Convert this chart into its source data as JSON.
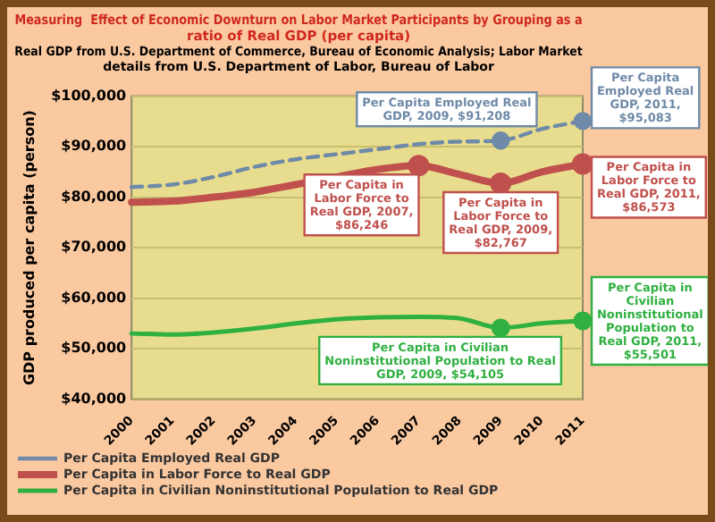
{
  "chart_data": {
    "type": "line",
    "title": "Measuring  Effect of Economic Downturn on Labor Market Participants by Grouping as a ratio of Real GDP (per capita)",
    "subtitle": "Real GDP from U.S. Department of Commerce, Bureau of Economic Analysis; Labor Market details from U.S. Department of Labor, Bureau of Labor",
    "ylabel": "GDP produced per capita (person)",
    "categories": [
      "2000",
      "2001",
      "2002",
      "2003",
      "2004",
      "2005",
      "2006",
      "2007",
      "2008",
      "2009",
      "2010",
      "2011"
    ],
    "series": [
      {
        "name": "Per Capita Employed Real GDP",
        "color": "#6f8aa8",
        "line_style": "dashed",
        "values": [
          82000,
          82500,
          84000,
          86000,
          87500,
          88500,
          89500,
          90500,
          91000,
          91208,
          93500,
          95083
        ]
      },
      {
        "name": "Per Capita in Labor Force to Real GDP",
        "color": "#c0504d",
        "values": [
          79000,
          79200,
          80000,
          81000,
          82500,
          84000,
          85500,
          86246,
          84500,
          82767,
          85000,
          86573
        ]
      },
      {
        "name": "Per Capita in Civilian Noninstitutional Population to Real GDP",
        "color": "#2fb040",
        "values": [
          53000,
          52800,
          53200,
          54000,
          55000,
          55800,
          56200,
          56300,
          56000,
          54105,
          55000,
          55501
        ]
      }
    ],
    "ylim": [
      40000,
      100000
    ],
    "yticks": [
      {
        "value": 40000,
        "label": "$40,000"
      },
      {
        "value": 50000,
        "label": "$50,000"
      },
      {
        "value": 60000,
        "label": "$60,000"
      },
      {
        "value": 70000,
        "label": "$70,000"
      },
      {
        "value": 80000,
        "label": "$80,000"
      },
      {
        "value": 90000,
        "label": "$90,000"
      },
      {
        "value": 100000,
        "label": "$100,000"
      }
    ],
    "grid": "y",
    "legend": "bottom",
    "line_style": "solid",
    "annotations": [
      {
        "text": "Per Capita Employed Real GDP, 2009, $91,208",
        "x": "2009",
        "y": 91208
      },
      {
        "text": "Per Capita Employed Real GDP, 2011, $95,083",
        "x": "2011",
        "y": 95083
      },
      {
        "text": "Per Capita in Labor Force to Real GDP, 2007, $86,246",
        "x": "2007",
        "y": 86246
      },
      {
        "text": "Per Capita in Labor Force to Real GDP, 2009, $82,767",
        "x": "2009",
        "y": 82767
      },
      {
        "text": "Per Capita in Labor Force to Real GDP, 2011, $86,573",
        "x": "2011",
        "y": 86573
      },
      {
        "text": "Per Capita in Civilian Noninstitutional Population to Real GDP, 2009, $54,105",
        "x": "2009",
        "y": 54105
      },
      {
        "text": "Per Capita in Civilian Noninstitutional Population to Real GDP, 2011, $55,501",
        "x": "2011",
        "y": 55501
      }
    ]
  }
}
